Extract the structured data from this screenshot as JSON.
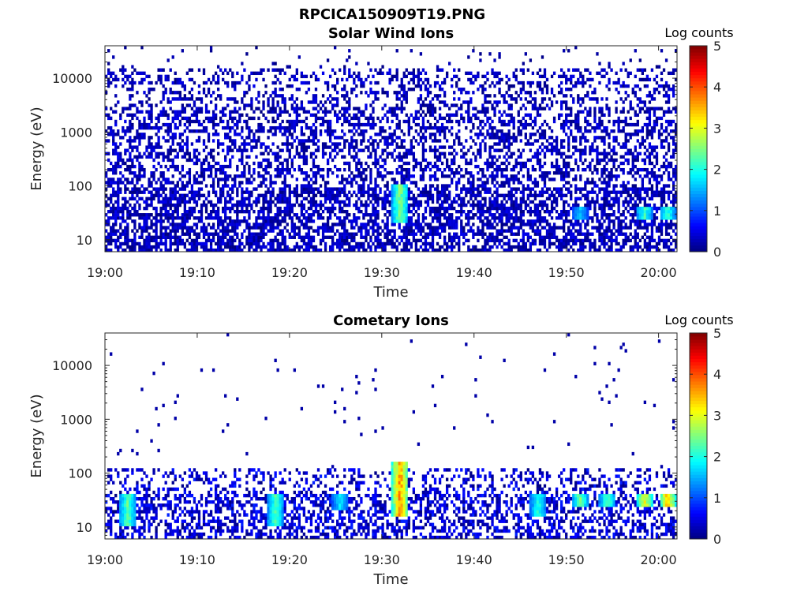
{
  "figure": {
    "title": "RPCICA150909T19.PNG"
  },
  "chart_data": [
    {
      "type": "heatmap",
      "title": "Solar Wind Ions",
      "xlabel": "Time",
      "ylabel": "Energy (eV)",
      "x_ticks": [
        "19:00",
        "19:10",
        "19:20",
        "19:30",
        "19:40",
        "19:50",
        "20:00"
      ],
      "x_range_minutes": [
        0,
        62
      ],
      "y_scale": "log",
      "y_ticks": [
        "10",
        "100",
        "1000",
        "10000"
      ],
      "y_tick_values": [
        10,
        100,
        1000,
        10000
      ],
      "y_range": [
        6,
        40000
      ],
      "colorbar": {
        "label": "Log counts",
        "range": [
          0,
          5
        ],
        "ticks": [
          "0",
          "1",
          "2",
          "3",
          "4",
          "5"
        ],
        "colormap": "jet"
      },
      "features": [
        {
          "time_min": 32,
          "energy_range_ev": [
            20,
            110
          ],
          "log_counts_peak": 2.8
        },
        {
          "time_min": 61,
          "energy_range_ev": [
            25,
            40
          ],
          "log_counts_peak": 2.3
        },
        {
          "time_min": 58.5,
          "energy_range_ev": [
            25,
            40
          ],
          "log_counts_peak": 2.4
        },
        {
          "time_min": 51.5,
          "energy_range_ev": [
            25,
            40
          ],
          "log_counts_peak": 1.8
        }
      ],
      "background": {
        "energy_range_ev": [
          6,
          15000
        ],
        "log_counts_typical": 0.3
      }
    },
    {
      "type": "heatmap",
      "title": "Cometary Ions",
      "xlabel": "Time",
      "ylabel": "Energy (eV)",
      "x_ticks": [
        "19:00",
        "19:10",
        "19:20",
        "19:30",
        "19:40",
        "19:50",
        "20:00"
      ],
      "x_range_minutes": [
        0,
        62
      ],
      "y_scale": "log",
      "y_ticks": [
        "10",
        "100",
        "1000",
        "10000"
      ],
      "y_tick_values": [
        10,
        100,
        1000,
        10000
      ],
      "y_range": [
        6,
        40000
      ],
      "colorbar": {
        "label": "Log counts",
        "range": [
          0,
          5
        ],
        "ticks": [
          "0",
          "1",
          "2",
          "3",
          "4",
          "5"
        ],
        "colormap": "jet"
      },
      "features": [
        {
          "time_min": 32,
          "energy_range_ev": [
            15,
            160
          ],
          "log_counts_peak": 4.1
        },
        {
          "time_min": 61,
          "energy_range_ev": [
            25,
            40
          ],
          "log_counts_peak": 3.8
        },
        {
          "time_min": 58.5,
          "energy_range_ev": [
            25,
            40
          ],
          "log_counts_peak": 3.4
        },
        {
          "time_min": 51.5,
          "energy_range_ev": [
            25,
            40
          ],
          "log_counts_peak": 2.7
        },
        {
          "time_min": 54.5,
          "energy_range_ev": [
            25,
            40
          ],
          "log_counts_peak": 2.6
        },
        {
          "time_min": 2.5,
          "energy_range_ev": [
            10,
            40
          ],
          "log_counts_peak": 2.6
        },
        {
          "time_min": 18.5,
          "energy_range_ev": [
            10,
            40
          ],
          "log_counts_peak": 2.5
        },
        {
          "time_min": 25.5,
          "energy_range_ev": [
            20,
            40
          ],
          "log_counts_peak": 2.0
        },
        {
          "time_min": 47,
          "energy_range_ev": [
            15,
            40
          ],
          "log_counts_peak": 2.3
        }
      ],
      "background": {
        "energy_range_ev": [
          6,
          120
        ],
        "log_counts_typical": 0.5
      }
    }
  ]
}
